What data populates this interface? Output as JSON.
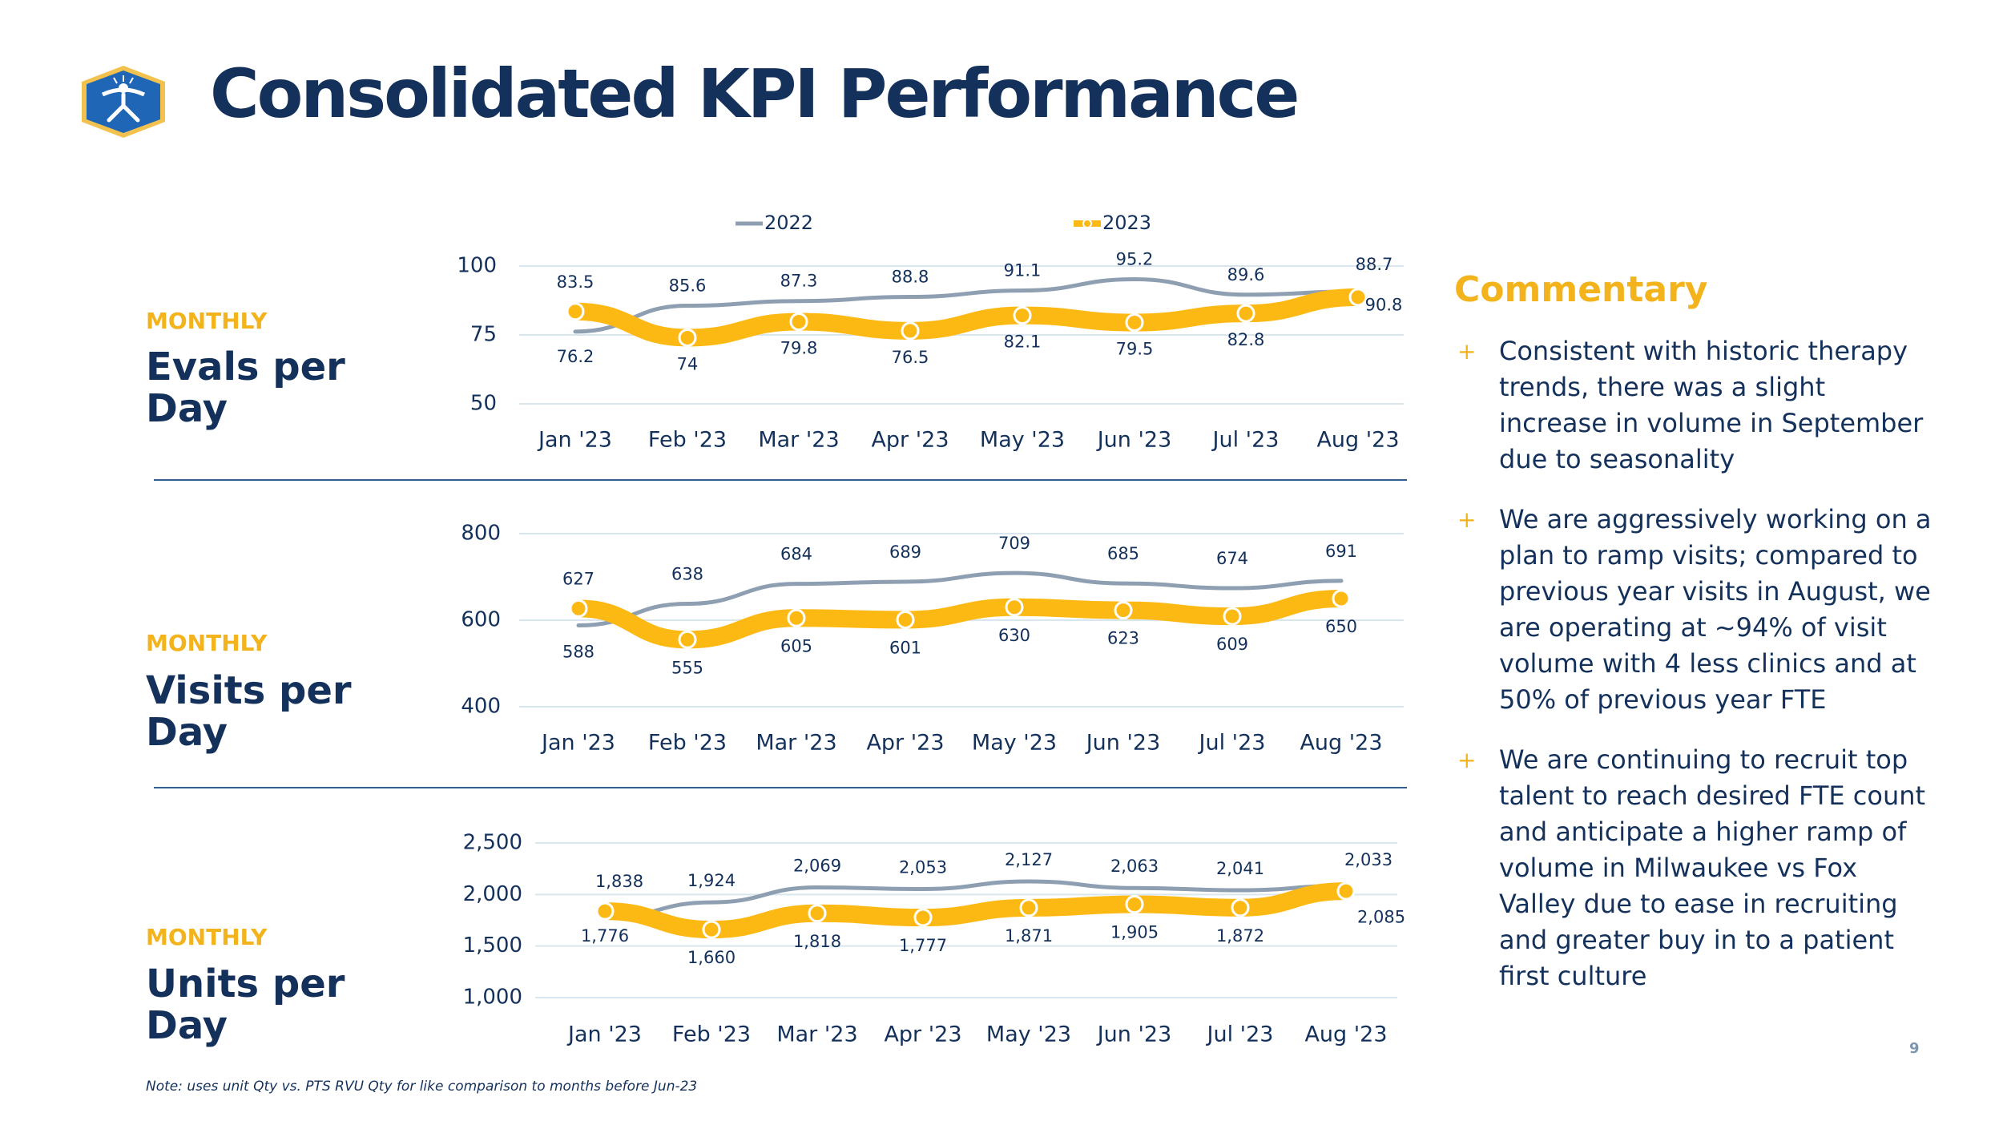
{
  "header": {
    "title": "Consolidated KPI Performance"
  },
  "legend": {
    "series_2022": "2022",
    "series_2023": "2023"
  },
  "colors": {
    "series_2022": "#8e9fb2",
    "series_2023": "#fdb913",
    "navy": "#14315b",
    "accent": "#f2b31c"
  },
  "sections": [
    {
      "label": "MONTHLY",
      "name": "Evals per Day"
    },
    {
      "label": "MONTHLY",
      "name": "Visits per Day"
    },
    {
      "label": "MONTHLY",
      "name": "Units per Day"
    }
  ],
  "chart_data": [
    {
      "type": "line",
      "categories": [
        "Jan '23",
        "Feb '23",
        "Mar '23",
        "Apr '23",
        "May '23",
        "Jun '23",
        "Jul '23",
        "Aug '23"
      ],
      "yticks": [
        "100",
        "75",
        "50"
      ],
      "ylim": [
        50,
        100
      ],
      "series": [
        {
          "name": "2022",
          "values": [
            76.2,
            85.6,
            87.3,
            88.8,
            91.1,
            95.2,
            89.6,
            90.8
          ],
          "labels": [
            "76.2",
            "85.6",
            "87.3",
            "88.8",
            "91.1",
            "95.2",
            "89.6",
            "90.8"
          ]
        },
        {
          "name": "2023",
          "values": [
            83.5,
            74,
            79.8,
            76.5,
            82.1,
            79.5,
            82.8,
            88.7
          ],
          "labels": [
            "83.5",
            "74",
            "79.8",
            "76.5",
            "82.1",
            "79.5",
            "82.8",
            "88.7"
          ]
        }
      ]
    },
    {
      "type": "line",
      "categories": [
        "Jan '23",
        "Feb '23",
        "Mar '23",
        "Apr '23",
        "May '23",
        "Jun '23",
        "Jul '23",
        "Aug '23"
      ],
      "yticks": [
        "800",
        "600",
        "400"
      ],
      "ylim": [
        400,
        800
      ],
      "series": [
        {
          "name": "2022",
          "values": [
            588,
            638,
            684,
            689,
            709,
            685,
            674,
            691
          ],
          "labels": [
            "588",
            "638",
            "684",
            "689",
            "709",
            "685",
            "674",
            "691"
          ]
        },
        {
          "name": "2023",
          "values": [
            627,
            555,
            605,
            601,
            630,
            623,
            609,
            650
          ],
          "labels": [
            "627",
            "555",
            "605",
            "601",
            "630",
            "623",
            "609",
            "650"
          ]
        }
      ]
    },
    {
      "type": "line",
      "categories": [
        "Jan '23",
        "Feb '23",
        "Mar '23",
        "Apr '23",
        "May '23",
        "Jun '23",
        "Jul '23",
        "Aug '23"
      ],
      "yticks": [
        "2,500",
        "2,000",
        "1,500",
        "1,000"
      ],
      "ylim": [
        1000,
        2500
      ],
      "series": [
        {
          "name": "2022",
          "values": [
            1776,
            1924,
            2069,
            2053,
            2127,
            2063,
            2041,
            2085
          ],
          "labels": [
            "1,776",
            "1,924",
            "2,069",
            "2,053",
            "2,127",
            "2,063",
            "2,041",
            "2,085"
          ]
        },
        {
          "name": "2023",
          "values": [
            1838,
            1660,
            1818,
            1777,
            1871,
            1905,
            1872,
            2033
          ],
          "labels": [
            "1,838",
            "1,660",
            "1,818",
            "1,777",
            "1,871",
            "1,905",
            "1,872",
            "2,033"
          ]
        }
      ]
    }
  ],
  "commentary": {
    "title": "Commentary",
    "bullet_symbol": "+",
    "items": [
      "Consistent with historic therapy trends, there was a slight increase in volume in September due to seasonality",
      "We are aggressively working on a plan to ramp visits; compared to previous year visits in August, we are operating at ~94% of visit volume with 4 less clinics and at 50% of previous year FTE",
      "We are continuing to recruit top talent to reach desired FTE count and anticipate a higher ramp of volume in Milwaukee vs Fox Valley due to ease in recruiting and greater buy in to a patient first culture"
    ]
  },
  "footer": {
    "note": "Note: uses unit Qty vs. PTS RVU Qty for like comparison to months before Jun-23",
    "page_number": "9"
  }
}
